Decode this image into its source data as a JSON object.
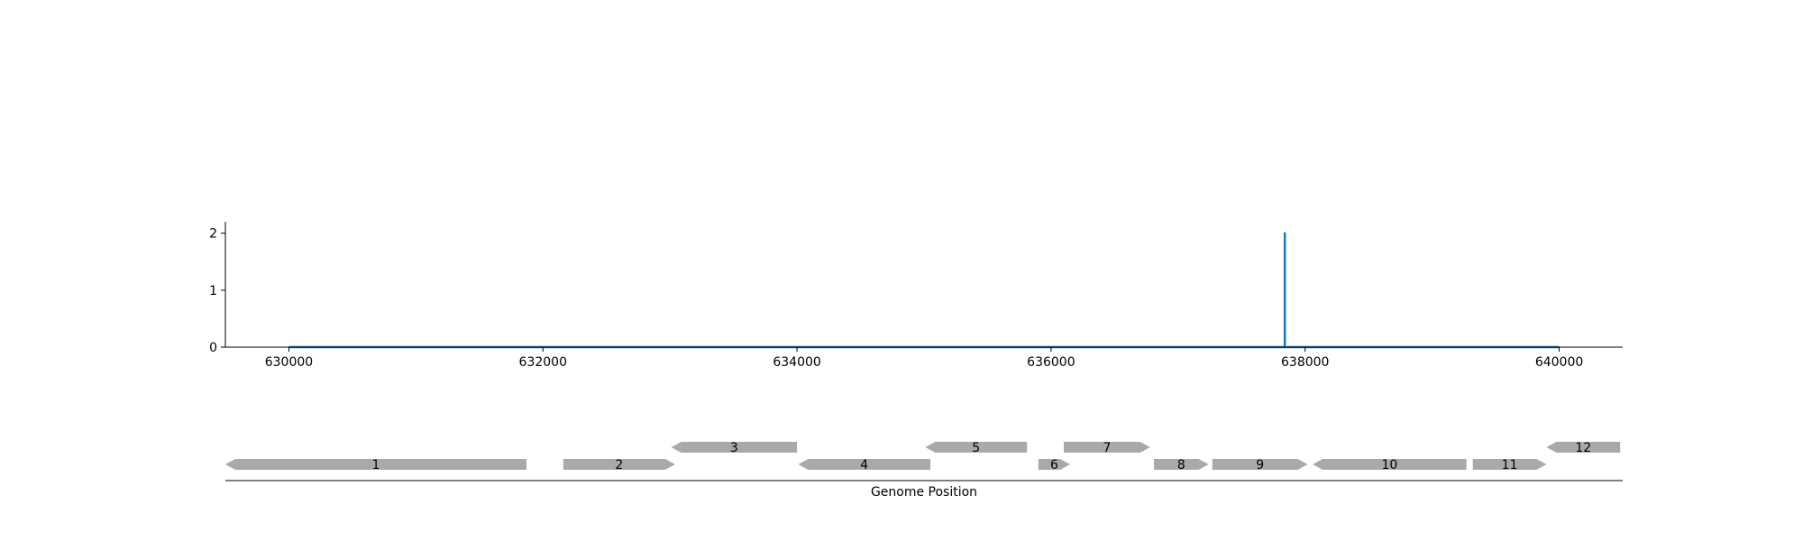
{
  "chart_data": [
    {
      "type": "line",
      "title": "",
      "xlabel": "",
      "ylabel": "",
      "xlim": [
        629500,
        640500
      ],
      "ylim": [
        0,
        2.2
      ],
      "xticks": [
        630000,
        632000,
        634000,
        636000,
        638000,
        640000
      ],
      "xtick_labels": [
        "630000",
        "632000",
        "634000",
        "636000",
        "638000",
        "640000"
      ],
      "yticks": [
        0,
        1,
        2
      ],
      "ytick_labels": [
        "0",
        "1",
        "2"
      ],
      "grid": false,
      "series": [
        {
          "color": "#1f77b4",
          "x": [
            630000,
            637840,
            637840,
            637840,
            637840,
            640000
          ],
          "y": [
            0,
            0,
            2,
            2,
            0,
            0
          ]
        }
      ]
    },
    {
      "type": "gene-track",
      "xlabel": "Genome Position",
      "xlim": [
        629500,
        640500
      ],
      "color": "#a9a9a9",
      "genes": [
        {
          "label": "1",
          "start": 629500,
          "end": 631870,
          "strand": "-",
          "row": 0
        },
        {
          "label": "2",
          "start": 632160,
          "end": 633040,
          "strand": "+",
          "row": 0
        },
        {
          "label": "3",
          "start": 633010,
          "end": 634000,
          "strand": "-",
          "row": 1
        },
        {
          "label": "4",
          "start": 634010,
          "end": 635050,
          "strand": "-",
          "row": 0
        },
        {
          "label": "5",
          "start": 635010,
          "end": 635810,
          "strand": "-",
          "row": 1
        },
        {
          "label": "6",
          "start": 635900,
          "end": 636150,
          "strand": "+",
          "row": 0
        },
        {
          "label": "7",
          "start": 636100,
          "end": 636780,
          "strand": "+",
          "row": 1
        },
        {
          "label": "8",
          "start": 636810,
          "end": 637240,
          "strand": "+",
          "row": 0
        },
        {
          "label": "9",
          "start": 637270,
          "end": 638020,
          "strand": "+",
          "row": 0
        },
        {
          "label": "10",
          "start": 638060,
          "end": 639270,
          "strand": "-",
          "row": 0
        },
        {
          "label": "11",
          "start": 639320,
          "end": 639900,
          "strand": "+",
          "row": 0
        },
        {
          "label": "12",
          "start": 639900,
          "end": 640480,
          "strand": "-",
          "row": 1
        }
      ]
    }
  ]
}
